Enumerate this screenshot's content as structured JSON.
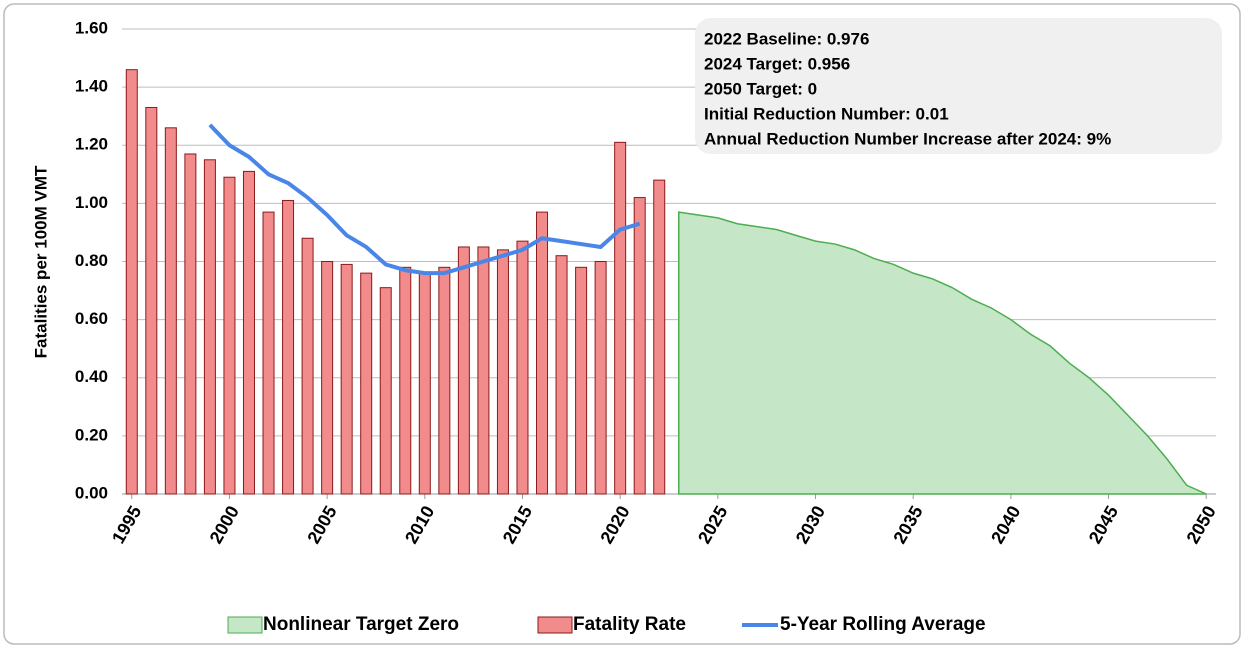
{
  "chart_data": {
    "type": "combo",
    "y_label": "Fatalities per 100M VMT",
    "annotation": [
      "2022 Baseline: 0.976",
      "2024 Target: 0.956",
      "2050 Target: 0",
      "Initial Reduction Number: 0.01",
      "Annual Reduction Number Increase after 2024: 9%"
    ],
    "categories": [
      1995,
      null,
      null,
      null,
      null,
      2000,
      null,
      null,
      null,
      null,
      2005,
      null,
      null,
      null,
      null,
      2010,
      null,
      null,
      null,
      null,
      2015,
      null,
      null,
      null,
      null,
      2020,
      null,
      null,
      null,
      null,
      2025,
      null,
      null,
      null,
      null,
      2030,
      null,
      null,
      null,
      null,
      2035,
      null,
      null,
      null,
      null,
      2040,
      null,
      null,
      null,
      null,
      2045,
      null,
      null,
      null,
      null,
      2050
    ],
    "series": [
      {
        "name": "Nonlinear Target Zero",
        "type": "area",
        "color": "#c5e6c7",
        "edge_color": "#4cae50",
        "values": [
          null,
          null,
          null,
          null,
          null,
          null,
          null,
          null,
          null,
          null,
          null,
          null,
          null,
          null,
          null,
          null,
          null,
          null,
          null,
          null,
          null,
          null,
          null,
          null,
          null,
          null,
          null,
          null,
          0.97,
          0.96,
          0.95,
          0.93,
          0.92,
          0.91,
          0.89,
          0.87,
          0.86,
          0.84,
          0.81,
          0.79,
          0.76,
          0.74,
          0.71,
          0.67,
          0.64,
          0.6,
          0.55,
          0.51,
          0.45,
          0.4,
          0.34,
          0.27,
          0.2,
          0.12,
          0.03,
          0
        ]
      },
      {
        "name": "Fatality Rate",
        "type": "bar",
        "color": "#f28b8b",
        "edge_color": "#8b1a1a",
        "values": [
          1.46,
          1.33,
          1.26,
          1.17,
          1.15,
          1.09,
          1.11,
          0.97,
          1.01,
          0.88,
          0.8,
          0.79,
          0.76,
          0.71,
          0.78,
          0.76,
          0.78,
          0.85,
          0.85,
          0.84,
          0.87,
          0.97,
          0.82,
          0.78,
          0.8,
          1.21,
          1.02,
          1.08,
          null,
          null,
          null,
          null,
          null,
          null,
          null,
          null,
          null,
          null,
          null,
          null,
          null,
          null,
          null,
          null,
          null,
          null,
          null,
          null,
          null,
          null,
          null,
          null,
          null,
          null,
          null,
          null
        ]
      },
      {
        "name": "5-Year Rolling Average",
        "type": "line",
        "color": "#4a86e8",
        "values": [
          null,
          null,
          null,
          null,
          1.27,
          1.2,
          1.16,
          1.1,
          1.07,
          1.02,
          0.96,
          0.89,
          0.85,
          0.79,
          0.77,
          0.76,
          0.76,
          0.78,
          0.8,
          0.82,
          0.84,
          0.88,
          0.87,
          0.86,
          0.85,
          0.91,
          0.93,
          null,
          null,
          null,
          null,
          null,
          null,
          null,
          null,
          null,
          null,
          null,
          null,
          null,
          null,
          null,
          null,
          null,
          null,
          null,
          null,
          null,
          null,
          null,
          null,
          null,
          null,
          null,
          null,
          null
        ]
      }
    ],
    "ylim": [
      0,
      1.6
    ],
    "yticks": [
      {
        "value": 0,
        "label": "0.00"
      },
      {
        "value": 0.2,
        "label": "0.20"
      },
      {
        "value": 0.4,
        "label": "0.40"
      },
      {
        "value": 0.6,
        "label": "0.60"
      },
      {
        "value": 0.8,
        "label": "0.80"
      },
      {
        "value": 1,
        "label": "1.00"
      },
      {
        "value": 1.2,
        "label": "1.20"
      },
      {
        "value": 1.4,
        "label": "1.40"
      },
      {
        "value": 1.6,
        "label": "1.60"
      }
    ],
    "grid": true,
    "legend": "bottom"
  }
}
